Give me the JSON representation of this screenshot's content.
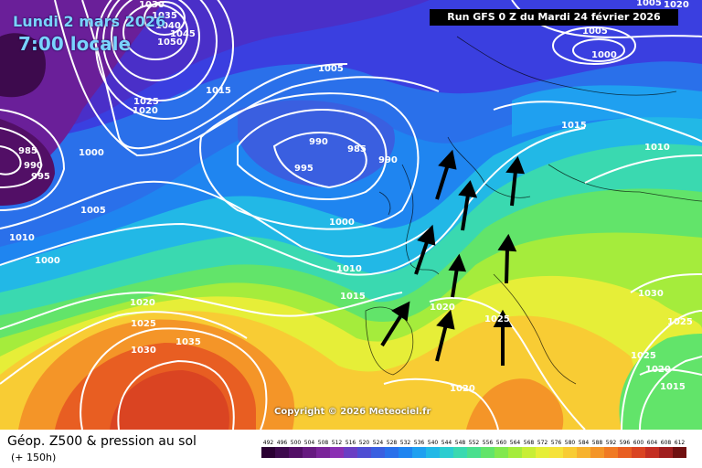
{
  "header": {
    "date": "Lundi 2 mars 2026",
    "time": "7:00 locale",
    "run": "Run GFS 0 Z du Mardi 24 février 2026"
  },
  "copyright": "Copyright © 2026 Meteociel.fr",
  "footer": {
    "title": "Géop. Z500 & pression au sol",
    "subtitle": "(+ 150h)"
  },
  "legend": {
    "values": [
      "492",
      "496",
      "500",
      "504",
      "508",
      "512",
      "516",
      "520",
      "524",
      "528",
      "532",
      "536",
      "540",
      "544",
      "548",
      "552",
      "556",
      "560",
      "564",
      "568",
      "572",
      "576",
      "580",
      "584",
      "588",
      "592",
      "596",
      "600",
      "604",
      "608",
      "612"
    ],
    "colors": [
      "#2a0033",
      "#3d0a4d",
      "#520f66",
      "#661a80",
      "#7a2499",
      "#8a30b3",
      "#6a3fc4",
      "#4f4ed3",
      "#3a5fe0",
      "#2a70ea",
      "#1f85f0",
      "#1fa0f0",
      "#22b8e6",
      "#2ccdd0",
      "#3ad9b0",
      "#4adf8e",
      "#62e46a",
      "#82e84e",
      "#a5ec3c",
      "#c8ee36",
      "#e6ee38",
      "#f5e23a",
      "#f8cc34",
      "#f7b22e",
      "#f49528",
      "#f07a24",
      "#e85e22",
      "#da4422",
      "#c42e22",
      "#a01e1e",
      "#701010"
    ]
  },
  "isobars": [
    {
      "label": "1030",
      "pos": "a"
    },
    {
      "label": "1035",
      "pos": "b"
    },
    {
      "label": "1040",
      "pos": "c"
    },
    {
      "label": "1045",
      "pos": "d"
    },
    {
      "label": "1050",
      "pos": "e"
    },
    {
      "label": "1025",
      "pos": "f"
    },
    {
      "label": "1020",
      "pos": "g"
    },
    {
      "label": "1015",
      "pos": "h"
    },
    {
      "label": "1005",
      "pos": "i"
    },
    {
      "label": "985",
      "pos": "j"
    },
    {
      "label": "990",
      "pos": "k"
    },
    {
      "label": "995",
      "pos": "l"
    },
    {
      "label": "1000",
      "pos": "m"
    },
    {
      "label": "1005",
      "pos": "n"
    },
    {
      "label": "1010",
      "pos": "o"
    },
    {
      "label": "1000",
      "pos": "p"
    },
    {
      "label": "990",
      "pos": "q"
    },
    {
      "label": "985",
      "pos": "r"
    },
    {
      "label": "990",
      "pos": "s"
    },
    {
      "label": "995",
      "pos": "t"
    },
    {
      "label": "1000",
      "pos": "u"
    },
    {
      "label": "1010",
      "pos": "v"
    },
    {
      "label": "1015",
      "pos": "w"
    },
    {
      "label": "1020",
      "pos": "x"
    },
    {
      "label": "1025",
      "pos": "y"
    },
    {
      "label": "1030",
      "pos": "z"
    },
    {
      "label": "1035",
      "pos": "aa"
    },
    {
      "label": "1020",
      "pos": "ab"
    },
    {
      "label": "1025",
      "pos": "ac"
    },
    {
      "label": "1020",
      "pos": "ad"
    },
    {
      "label": "1005",
      "pos": "ae"
    },
    {
      "label": "1000",
      "pos": "af"
    },
    {
      "label": "1015",
      "pos": "ag"
    },
    {
      "label": "1010",
      "pos": "ah"
    },
    {
      "label": "1030",
      "pos": "ai"
    },
    {
      "label": "1025",
      "pos": "aj"
    },
    {
      "label": "1025",
      "pos": "ak"
    },
    {
      "label": "1020",
      "pos": "al"
    },
    {
      "label": "1015",
      "pos": "am"
    },
    {
      "label": "1020",
      "pos": "an"
    },
    {
      "label": "1005",
      "pos": "ao"
    }
  ]
}
